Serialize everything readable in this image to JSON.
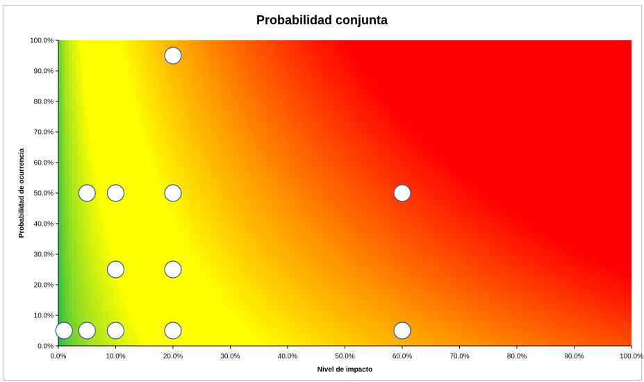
{
  "chart_data": {
    "type": "scatter",
    "title": "Probabilidad conjunta",
    "xlabel": "Nivel de impacto",
    "ylabel": "Probabilidad de ocurrencia",
    "xlim": [
      0,
      1
    ],
    "ylim": [
      0,
      1
    ],
    "x_ticks": [
      "0.0%",
      "10.0%",
      "20.0%",
      "30.0%",
      "40.0%",
      "50.0%",
      "60.0%",
      "70.0%",
      "80.0%",
      "90.0%",
      "100.0%"
    ],
    "y_ticks": [
      "0.0%",
      "10.0%",
      "20.0%",
      "30.0%",
      "40.0%",
      "50.0%",
      "60.0%",
      "70.0%",
      "80.0%",
      "90.0%",
      "100.0%"
    ],
    "background": "risk heat gradient (green low, yellow medium, red high)",
    "colors": {
      "green": "#00b050",
      "yellow": "#ffff00",
      "orange": "#ff9900",
      "red": "#ff0000",
      "marker_fill": "#ffffff",
      "marker_edge": "#2f5597"
    },
    "points": [
      {
        "x": 0.01,
        "y": 0.05
      },
      {
        "x": 0.05,
        "y": 0.05
      },
      {
        "x": 0.1,
        "y": 0.05
      },
      {
        "x": 0.2,
        "y": 0.05
      },
      {
        "x": 0.6,
        "y": 0.05
      },
      {
        "x": 0.1,
        "y": 0.25
      },
      {
        "x": 0.2,
        "y": 0.25
      },
      {
        "x": 0.05,
        "y": 0.5
      },
      {
        "x": 0.1,
        "y": 0.5
      },
      {
        "x": 0.2,
        "y": 0.5
      },
      {
        "x": 0.6,
        "y": 0.5
      },
      {
        "x": 0.2,
        "y": 0.95
      }
    ]
  }
}
